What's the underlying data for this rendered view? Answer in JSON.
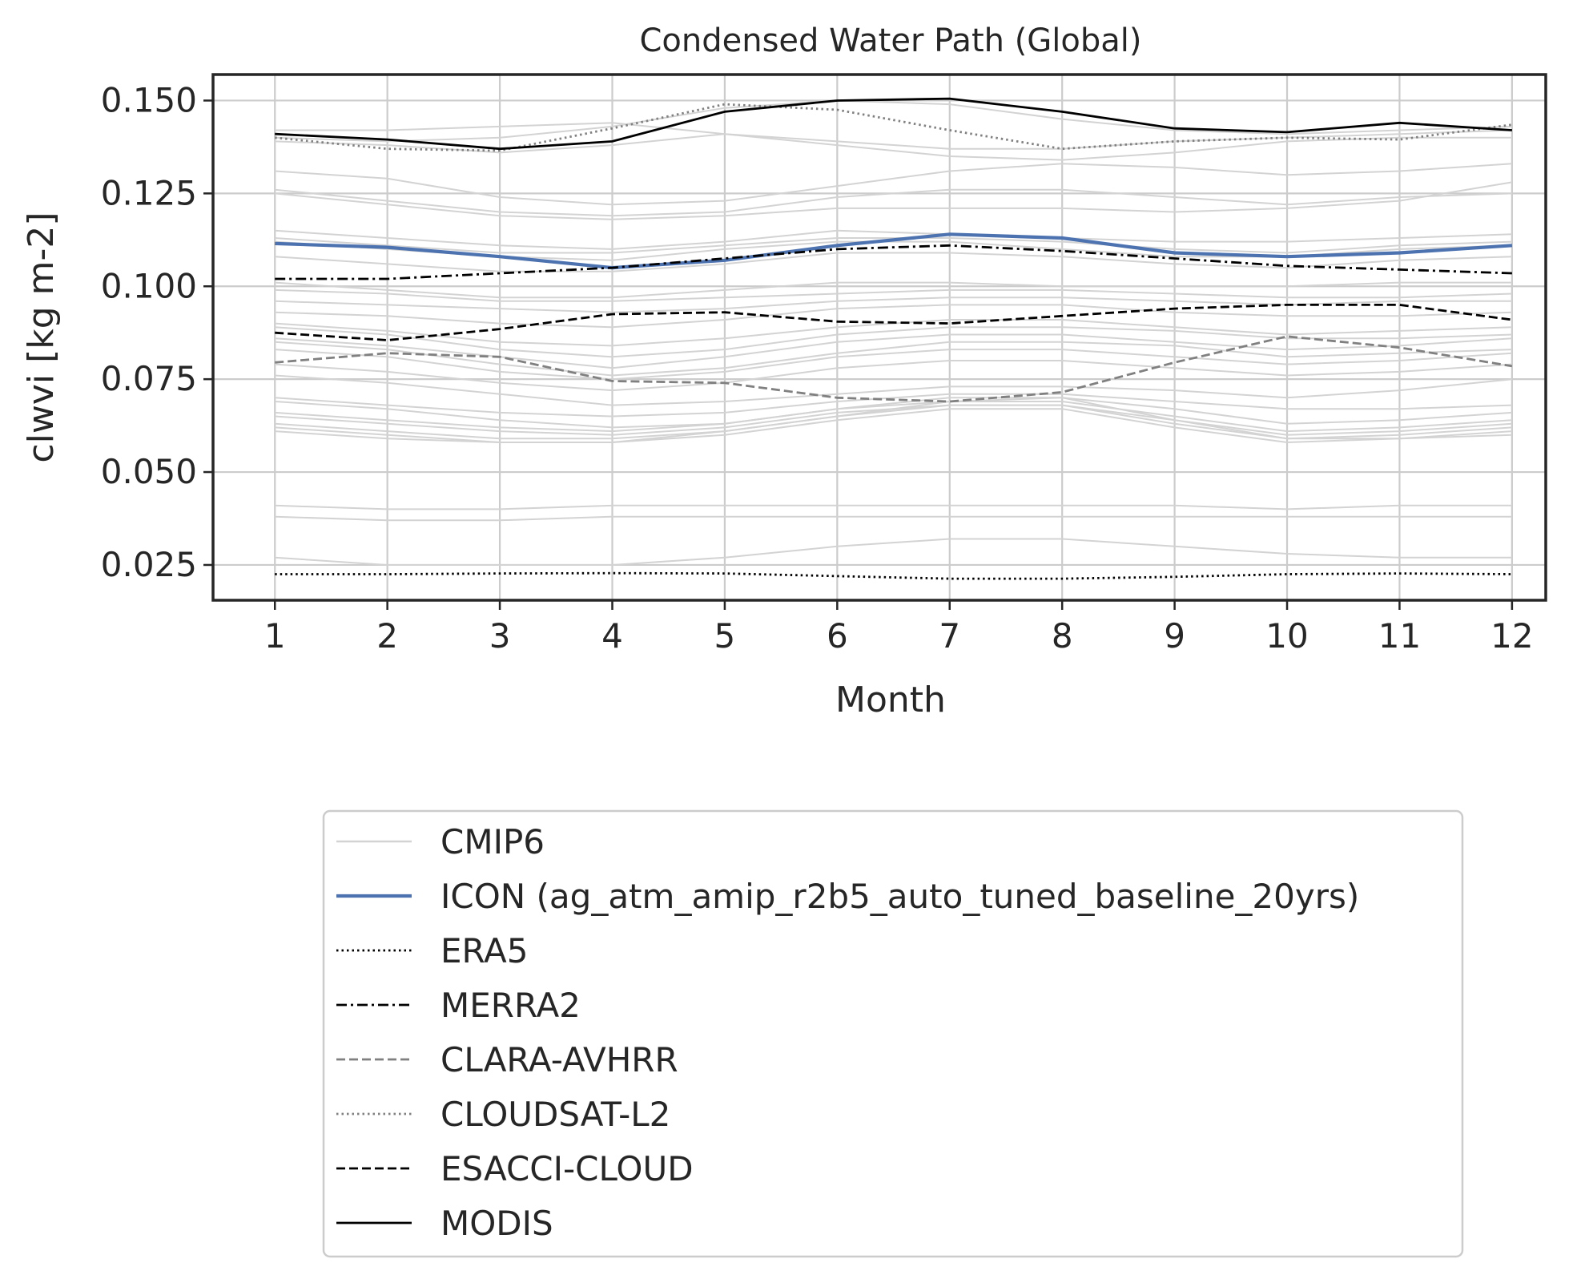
{
  "chart_data": {
    "type": "line",
    "title": "Condensed Water Path (Global)",
    "xlabel": "Month",
    "ylabel": "clwvi [kg m-2]",
    "categories": [
      1,
      2,
      3,
      4,
      5,
      6,
      7,
      8,
      9,
      10,
      11,
      12
    ],
    "x_tick_labels": [
      "1",
      "2",
      "3",
      "4",
      "5",
      "6",
      "7",
      "8",
      "9",
      "10",
      "11",
      "12"
    ],
    "y_ticks": [
      0.025,
      0.05,
      0.075,
      0.1,
      0.125,
      0.15
    ],
    "y_tick_labels": [
      "0.025",
      "0.050",
      "0.075",
      "0.100",
      "0.125",
      "0.150"
    ],
    "xlim": [
      0.45,
      12.3
    ],
    "ylim": [
      0.0155,
      0.157
    ],
    "grid": true,
    "legend_position": "below",
    "cmip6_color": "#d3d3d3",
    "cmip6_models": [
      [
        0.142,
        0.142,
        0.143,
        0.144,
        0.141,
        0.139,
        0.137,
        0.137,
        0.139,
        0.14,
        0.141,
        0.142
      ],
      [
        0.14,
        0.139,
        0.14,
        0.143,
        0.148,
        0.15,
        0.149,
        0.145,
        0.142,
        0.141,
        0.142,
        0.143
      ],
      [
        0.139,
        0.138,
        0.136,
        0.138,
        0.141,
        0.138,
        0.135,
        0.134,
        0.136,
        0.139,
        0.14,
        0.14
      ],
      [
        0.131,
        0.129,
        0.124,
        0.122,
        0.123,
        0.127,
        0.131,
        0.133,
        0.132,
        0.13,
        0.131,
        0.133
      ],
      [
        0.126,
        0.123,
        0.12,
        0.119,
        0.12,
        0.124,
        0.126,
        0.126,
        0.124,
        0.122,
        0.124,
        0.125
      ],
      [
        0.125,
        0.122,
        0.119,
        0.118,
        0.119,
        0.121,
        0.121,
        0.121,
        0.12,
        0.121,
        0.123,
        0.128
      ],
      [
        0.115,
        0.113,
        0.111,
        0.11,
        0.112,
        0.115,
        0.114,
        0.113,
        0.112,
        0.112,
        0.113,
        0.114
      ],
      [
        0.113,
        0.111,
        0.109,
        0.109,
        0.111,
        0.113,
        0.113,
        0.112,
        0.11,
        0.109,
        0.111,
        0.112
      ],
      [
        0.112,
        0.11,
        0.108,
        0.107,
        0.11,
        0.112,
        0.112,
        0.11,
        0.108,
        0.108,
        0.11,
        0.111
      ],
      [
        0.108,
        0.106,
        0.104,
        0.104,
        0.106,
        0.109,
        0.109,
        0.108,
        0.106,
        0.105,
        0.107,
        0.108
      ],
      [
        0.101,
        0.099,
        0.097,
        0.097,
        0.099,
        0.101,
        0.101,
        0.1,
        0.1,
        0.1,
        0.101,
        0.101
      ],
      [
        0.099,
        0.098,
        0.096,
        0.096,
        0.097,
        0.098,
        0.099,
        0.099,
        0.098,
        0.097,
        0.097,
        0.098
      ],
      [
        0.096,
        0.095,
        0.094,
        0.093,
        0.094,
        0.096,
        0.097,
        0.097,
        0.096,
        0.095,
        0.096,
        0.096
      ],
      [
        0.093,
        0.092,
        0.09,
        0.089,
        0.091,
        0.094,
        0.095,
        0.095,
        0.093,
        0.092,
        0.092,
        0.093
      ],
      [
        0.09,
        0.088,
        0.085,
        0.084,
        0.086,
        0.089,
        0.091,
        0.091,
        0.089,
        0.087,
        0.088,
        0.089
      ],
      [
        0.089,
        0.087,
        0.083,
        0.081,
        0.083,
        0.087,
        0.089,
        0.089,
        0.088,
        0.086,
        0.086,
        0.087
      ],
      [
        0.086,
        0.084,
        0.081,
        0.078,
        0.081,
        0.085,
        0.087,
        0.087,
        0.085,
        0.083,
        0.084,
        0.086
      ],
      [
        0.085,
        0.083,
        0.079,
        0.076,
        0.078,
        0.082,
        0.085,
        0.085,
        0.084,
        0.081,
        0.082,
        0.083
      ],
      [
        0.083,
        0.081,
        0.077,
        0.075,
        0.077,
        0.081,
        0.083,
        0.083,
        0.081,
        0.079,
        0.08,
        0.082
      ],
      [
        0.079,
        0.077,
        0.074,
        0.072,
        0.074,
        0.078,
        0.08,
        0.08,
        0.078,
        0.076,
        0.077,
        0.079
      ],
      [
        0.076,
        0.074,
        0.071,
        0.068,
        0.069,
        0.071,
        0.073,
        0.073,
        0.072,
        0.07,
        0.072,
        0.075
      ],
      [
        0.07,
        0.068,
        0.066,
        0.065,
        0.066,
        0.069,
        0.071,
        0.071,
        0.069,
        0.067,
        0.067,
        0.068
      ],
      [
        0.069,
        0.067,
        0.064,
        0.062,
        0.063,
        0.067,
        0.07,
        0.07,
        0.067,
        0.063,
        0.064,
        0.066
      ],
      [
        0.066,
        0.064,
        0.062,
        0.061,
        0.063,
        0.067,
        0.069,
        0.069,
        0.065,
        0.061,
        0.062,
        0.064
      ],
      [
        0.065,
        0.063,
        0.061,
        0.06,
        0.062,
        0.066,
        0.068,
        0.068,
        0.064,
        0.06,
        0.061,
        0.063
      ],
      [
        0.063,
        0.061,
        0.059,
        0.059,
        0.061,
        0.065,
        0.068,
        0.068,
        0.063,
        0.059,
        0.06,
        0.062
      ],
      [
        0.062,
        0.06,
        0.058,
        0.058,
        0.06,
        0.064,
        0.067,
        0.067,
        0.062,
        0.058,
        0.059,
        0.061
      ],
      [
        0.061,
        0.059,
        0.058,
        0.058,
        0.061,
        0.065,
        0.069,
        0.07,
        0.064,
        0.059,
        0.059,
        0.06
      ],
      [
        0.041,
        0.04,
        0.04,
        0.041,
        0.041,
        0.041,
        0.041,
        0.041,
        0.041,
        0.04,
        0.041,
        0.041
      ],
      [
        0.038,
        0.037,
        0.037,
        0.038,
        0.038,
        0.038,
        0.038,
        0.038,
        0.038,
        0.038,
        0.038,
        0.038
      ],
      [
        0.027,
        0.025,
        0.025,
        0.025,
        0.027,
        0.03,
        0.032,
        0.032,
        0.03,
        0.028,
        0.027,
        0.027
      ]
    ],
    "series": [
      {
        "name": "ICON (ag_atm_amip_r2b5_auto_tuned_baseline_20yrs)",
        "color": "#4c72b0",
        "dash": "solid",
        "values": [
          0.1115,
          0.1105,
          0.108,
          0.105,
          0.107,
          0.111,
          0.114,
          0.113,
          0.109,
          0.108,
          0.109,
          0.111
        ]
      },
      {
        "name": "ERA5",
        "color": "#000000",
        "dash": "dotted",
        "values": [
          0.0225,
          0.0225,
          0.0227,
          0.0228,
          0.0227,
          0.022,
          0.0213,
          0.0213,
          0.0218,
          0.0225,
          0.0227,
          0.0225
        ]
      },
      {
        "name": "MERRA2",
        "color": "#000000",
        "dash": "dashdot",
        "values": [
          0.102,
          0.102,
          0.1035,
          0.105,
          0.1075,
          0.11,
          0.111,
          0.1095,
          0.1075,
          0.1055,
          0.1045,
          0.1035
        ]
      },
      {
        "name": "CLARA-AVHRR",
        "color": "#808080",
        "dash": "dashed",
        "values": [
          0.0795,
          0.082,
          0.081,
          0.0745,
          0.074,
          0.07,
          0.069,
          0.0715,
          0.0795,
          0.0865,
          0.0835,
          0.0785
        ]
      },
      {
        "name": "CLOUDSAT-L2",
        "color": "#808080",
        "dash": "dotted",
        "values": [
          0.14,
          0.137,
          0.1365,
          0.1425,
          0.149,
          0.1475,
          0.142,
          0.137,
          0.139,
          0.14,
          0.1395,
          0.1435
        ]
      },
      {
        "name": "ESACCI-CLOUD",
        "color": "#000000",
        "dash": "dashed",
        "values": [
          0.0875,
          0.0855,
          0.0885,
          0.0925,
          0.093,
          0.0905,
          0.09,
          0.092,
          0.094,
          0.095,
          0.095,
          0.091
        ]
      },
      {
        "name": "MODIS",
        "color": "#000000",
        "dash": "solid",
        "values": [
          0.141,
          0.1395,
          0.137,
          0.139,
          0.147,
          0.15,
          0.1505,
          0.147,
          0.1425,
          0.1415,
          0.144,
          0.142
        ]
      }
    ],
    "legend": [
      {
        "label": "CMIP6",
        "color": "#d3d3d3",
        "dash": "solid"
      },
      {
        "label": "ICON (ag_atm_amip_r2b5_auto_tuned_baseline_20yrs)",
        "color": "#4c72b0",
        "dash": "solid"
      },
      {
        "label": "ERA5",
        "color": "#000000",
        "dash": "dotted"
      },
      {
        "label": "MERRA2",
        "color": "#000000",
        "dash": "dashdot"
      },
      {
        "label": "CLARA-AVHRR",
        "color": "#808080",
        "dash": "dashed"
      },
      {
        "label": "CLOUDSAT-L2",
        "color": "#808080",
        "dash": "dotted"
      },
      {
        "label": "ESACCI-CLOUD",
        "color": "#000000",
        "dash": "dashed"
      },
      {
        "label": "MODIS",
        "color": "#000000",
        "dash": "solid"
      }
    ]
  }
}
